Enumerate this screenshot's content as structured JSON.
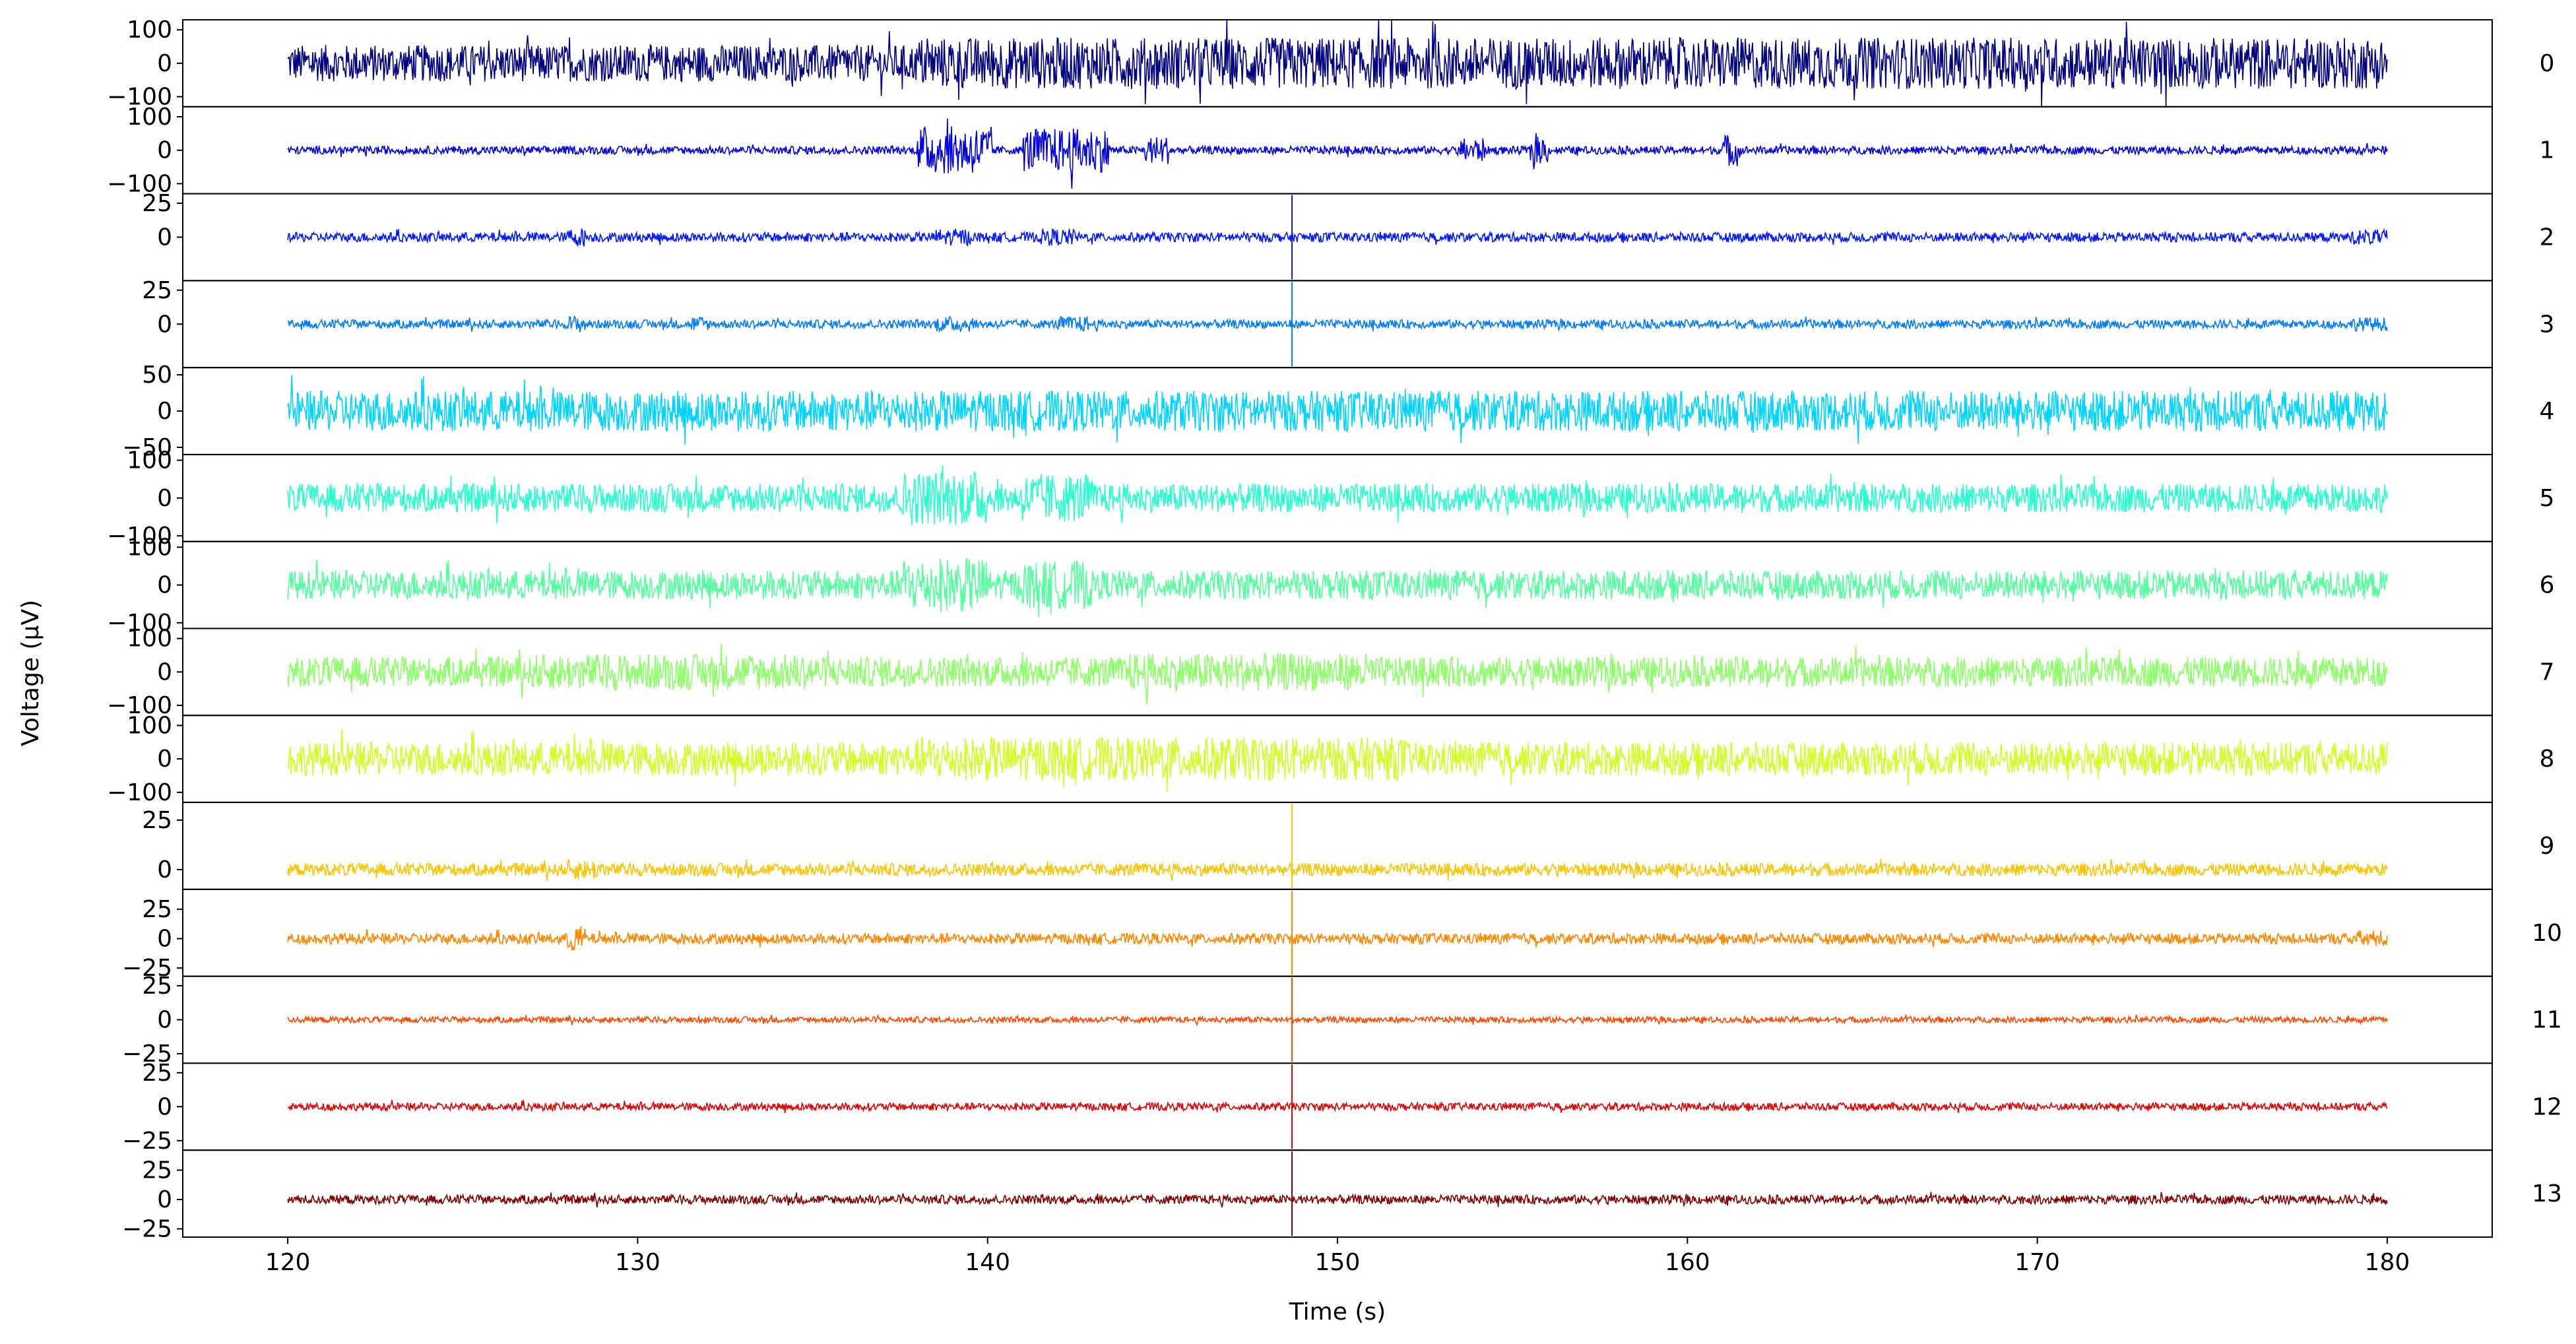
{
  "chart_data": {
    "type": "line",
    "title": "",
    "xlabel": "Time (s)",
    "ylabel": "Voltage (µV)",
    "xlim": [
      117,
      183
    ],
    "data_range": [
      120,
      180
    ],
    "x_ticks": [
      120,
      130,
      140,
      150,
      160,
      170,
      180
    ],
    "x_tick_labels": [
      "120",
      "130",
      "140",
      "150",
      "160",
      "170",
      "180"
    ],
    "grid": false,
    "legend": "none",
    "spike_time": 148.7,
    "channels": [
      {
        "name": "0",
        "color": "#00007f",
        "ylim": [
          -130,
          130
        ],
        "y_ticks": [
          -100,
          0,
          100
        ],
        "y_tick_labels": [
          "−100",
          "0",
          "100"
        ],
        "amplitude": 55,
        "bursts": [
          [
            138,
            180,
            1.4
          ]
        ]
      },
      {
        "name": "1",
        "color": "#0000e3",
        "ylim": [
          -130,
          130
        ],
        "y_ticks": [
          -100,
          0,
          100
        ],
        "y_tick_labels": [
          "−100",
          "0",
          "100"
        ],
        "amplitude": 12,
        "bursts": [
          [
            138,
            140.2,
            6
          ],
          [
            141,
            143.5,
            5.5
          ],
          [
            144.5,
            145.2,
            3.5
          ],
          [
            153.5,
            154.2,
            3
          ],
          [
            155.5,
            156,
            3.5
          ],
          [
            161,
            161.5,
            4
          ]
        ]
      },
      {
        "name": "2",
        "color": "#0018ff",
        "ylim": [
          -32,
          32
        ],
        "y_ticks": [
          0,
          25
        ],
        "y_tick_labels": [
          "0",
          "25"
        ],
        "amplitude": 3.5,
        "bursts": [
          [
            128,
            128.5,
            2
          ],
          [
            138.5,
            139.5,
            1.8
          ],
          [
            141.5,
            142.5,
            1.8
          ],
          [
            179,
            180,
            1.6
          ]
        ]
      },
      {
        "name": "3",
        "color": "#007cff",
        "ylim": [
          -32,
          32
        ],
        "y_ticks": [
          0,
          25
        ],
        "y_tick_labels": [
          "0",
          "25"
        ],
        "amplitude": 3.2,
        "bursts": [
          [
            128,
            128.5,
            2
          ],
          [
            131.5,
            132,
            1.8
          ],
          [
            138.5,
            139.5,
            1.8
          ],
          [
            142,
            143,
            1.8
          ],
          [
            179,
            180,
            1.6
          ]
        ]
      },
      {
        "name": "4",
        "color": "#00d4ff",
        "ylim": [
          -60,
          60
        ],
        "y_ticks": [
          -50,
          0,
          50
        ],
        "y_tick_labels": [
          "−50",
          "0",
          "50"
        ],
        "amplitude": 28,
        "bursts": []
      },
      {
        "name": "5",
        "color": "#29ffce",
        "ylim": [
          -115,
          115
        ],
        "y_ticks": [
          -100,
          0,
          100
        ],
        "y_tick_labels": [
          "−100",
          "0",
          "100"
        ],
        "amplitude": 38,
        "bursts": [
          [
            137.5,
            140,
            1.9
          ],
          [
            141,
            143,
            1.7
          ]
        ]
      },
      {
        "name": "6",
        "color": "#55ff9f",
        "ylim": [
          -115,
          115
        ],
        "y_ticks": [
          -100,
          0,
          100
        ],
        "y_tick_labels": [
          "−100",
          "0",
          "100"
        ],
        "amplitude": 38,
        "bursts": [
          [
            137.5,
            140,
            1.9
          ],
          [
            141,
            143,
            1.7
          ]
        ]
      },
      {
        "name": "7",
        "color": "#8dff69",
        "ylim": [
          -130,
          130
        ],
        "y_ticks": [
          -100,
          0,
          100
        ],
        "y_tick_labels": [
          "−100",
          "0",
          "100"
        ],
        "amplitude": 45,
        "bursts": [
          [
            127,
            135,
            1.2
          ],
          [
            144,
            151,
            1.25
          ]
        ]
      },
      {
        "name": "8",
        "color": "#d1ff25",
        "ylim": [
          -130,
          130
        ],
        "y_ticks": [
          -100,
          0,
          100
        ],
        "y_tick_labels": [
          "−100",
          "0",
          "100"
        ],
        "amplitude": 50,
        "bursts": [
          [
            138,
            152,
            1.3
          ]
        ]
      },
      {
        "name": "9",
        "color": "#ffc400",
        "ylim": [
          -10,
          34
        ],
        "y_ticks": [
          0,
          25
        ],
        "y_tick_labels": [
          "0",
          "25"
        ],
        "amplitude": 3.2,
        "bursts": [
          [
            128,
            129,
            1.6
          ]
        ]
      },
      {
        "name": "10",
        "color": "#ff8700",
        "ylim": [
          -32,
          42
        ],
        "y_ticks": [
          -25,
          0,
          25
        ],
        "y_tick_labels": [
          "−25",
          "0",
          "25"
        ],
        "amplitude": 4.5,
        "bursts": [
          [
            128,
            128.5,
            2.5
          ],
          [
            179,
            180,
            1.6
          ]
        ]
      },
      {
        "name": "11",
        "color": "#ff4800",
        "ylim": [
          -32,
          32
        ],
        "y_ticks": [
          -25,
          0,
          25
        ],
        "y_tick_labels": [
          "−25",
          "0",
          "25"
        ],
        "amplitude": 2.2,
        "bursts": []
      },
      {
        "name": "12",
        "color": "#e30000",
        "ylim": [
          -32,
          32
        ],
        "y_ticks": [
          -25,
          0,
          25
        ],
        "y_tick_labels": [
          "−25",
          "0",
          "25"
        ],
        "amplitude": 2.8,
        "bursts": []
      },
      {
        "name": "13",
        "color": "#7f0000",
        "ylim": [
          -32,
          42
        ],
        "y_ticks": [
          -25,
          0,
          25
        ],
        "y_tick_labels": [
          "−25",
          "0",
          "25"
        ],
        "amplitude": 3.8,
        "bursts": []
      }
    ]
  }
}
